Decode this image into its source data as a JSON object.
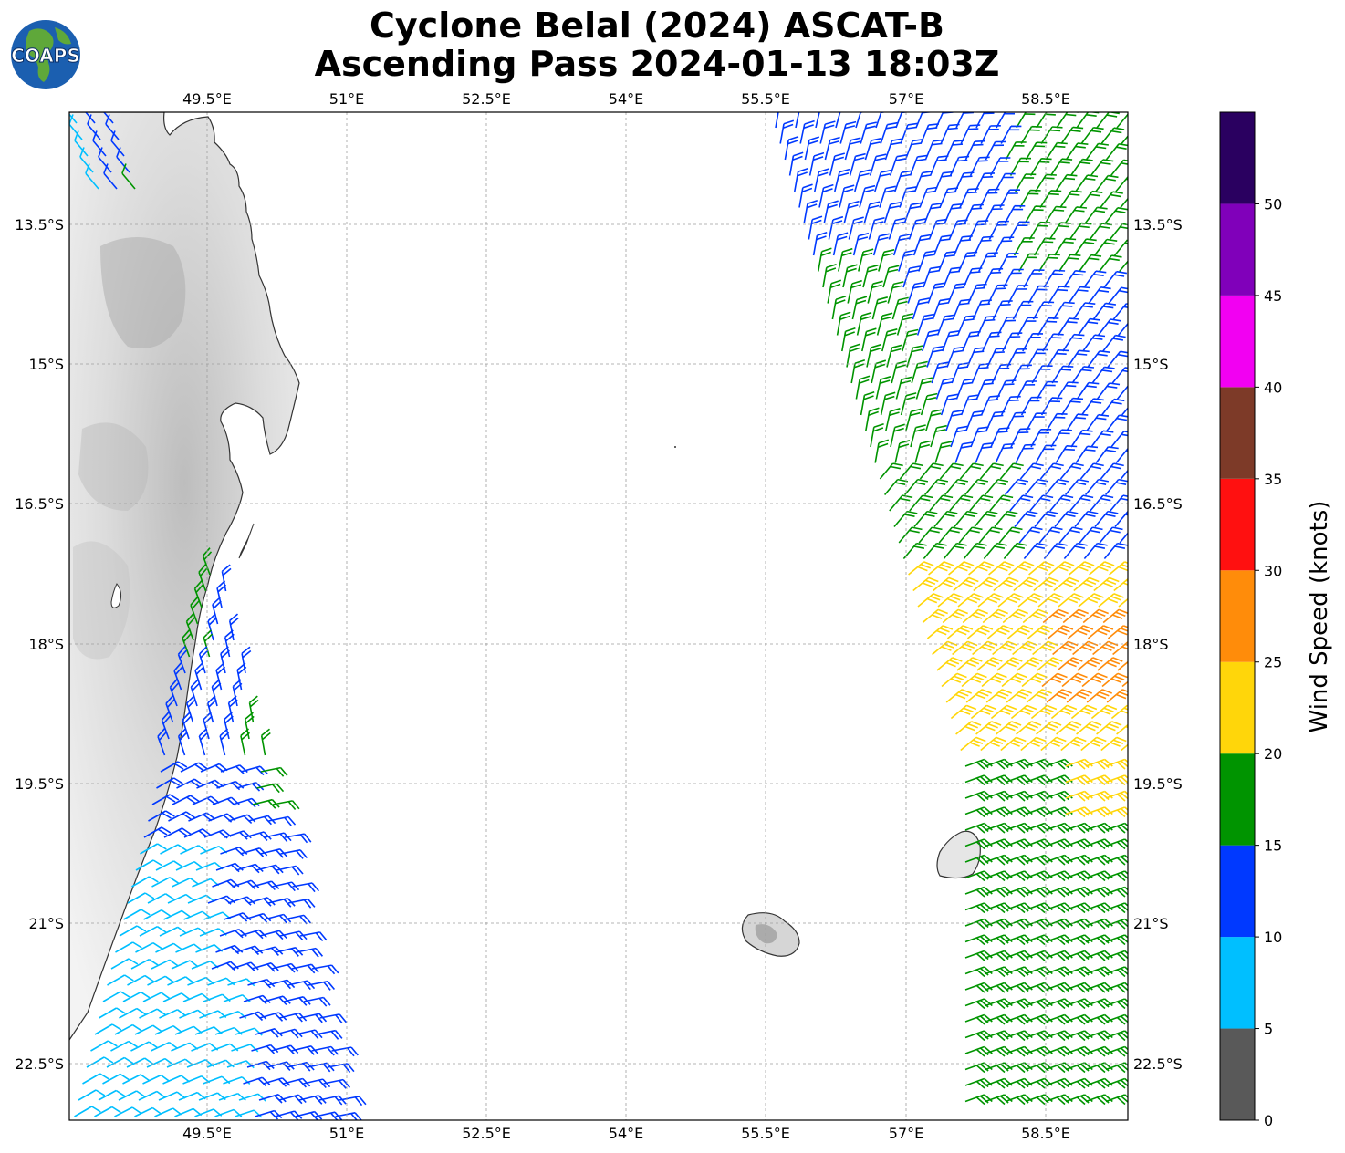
{
  "title": {
    "line1": "Cyclone Belal (2024) ASCAT-B",
    "line2": "Ascending Pass 2024-01-13 18:03Z"
  },
  "logo": {
    "text": "COAPS"
  },
  "axes": {
    "lon_ticks": [
      "49.5°E",
      "51°E",
      "52.5°E",
      "54°E",
      "55.5°E",
      "57°E",
      "58.5°E"
    ],
    "lat_ticks": [
      "13.5°S",
      "15°S",
      "16.5°S",
      "18°S",
      "19.5°S",
      "21°S",
      "22.5°S"
    ]
  },
  "colorbar": {
    "title": "Wind Speed (knots)",
    "tick_labels": [
      "0",
      "5",
      "10",
      "15",
      "20",
      "25",
      "30",
      "35",
      "40",
      "45",
      "50"
    ],
    "bins": [
      {
        "from": 0,
        "to": 5,
        "color": "#595959"
      },
      {
        "from": 5,
        "to": 10,
        "color": "#00bfff"
      },
      {
        "from": 10,
        "to": 15,
        "color": "#0039ff"
      },
      {
        "from": 15,
        "to": 20,
        "color": "#009400"
      },
      {
        "from": 20,
        "to": 25,
        "color": "#ffd60a"
      },
      {
        "from": 25,
        "to": 30,
        "color": "#ff8c0a"
      },
      {
        "from": 30,
        "to": 35,
        "color": "#ff1010"
      },
      {
        "from": 35,
        "to": 40,
        "color": "#7d3a28"
      },
      {
        "from": 40,
        "to": 45,
        "color": "#f200f2"
      },
      {
        "from": 45,
        "to": 50,
        "color": "#8000ba"
      },
      {
        "from": 50,
        "to": 55,
        "color": "#2a0060"
      }
    ]
  }
}
